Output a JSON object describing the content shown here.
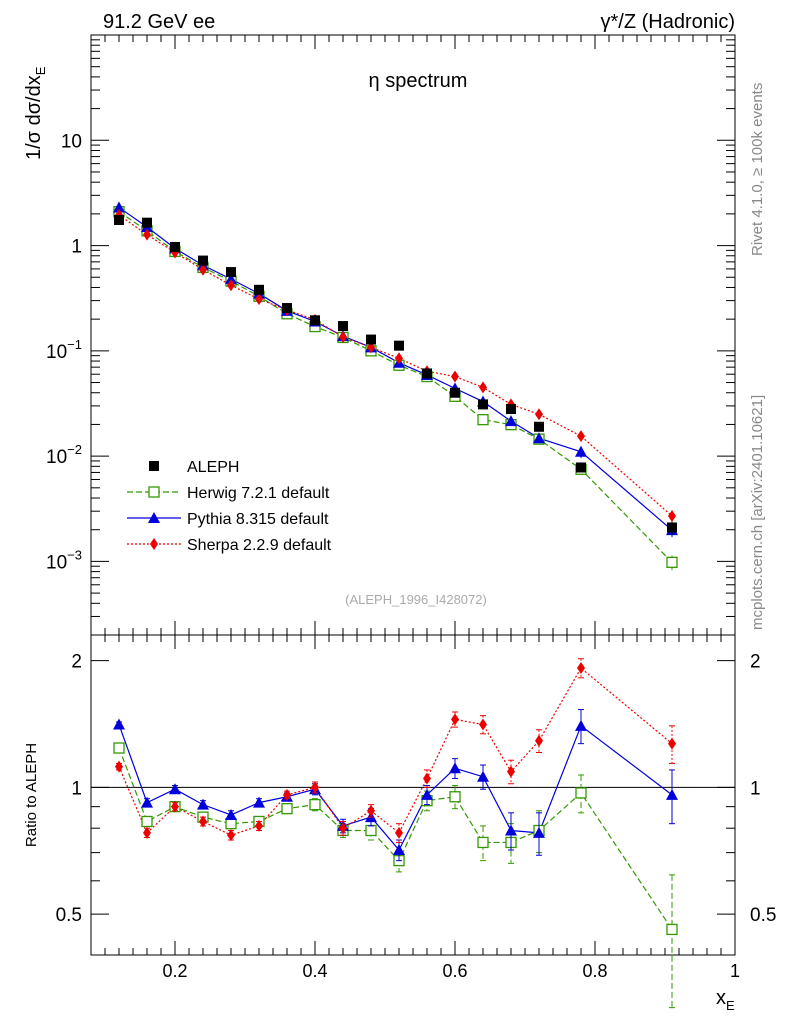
{
  "header": {
    "left_label": "91.2 GeV ee",
    "right_label": "γ*/Z (Hadronic)"
  },
  "side_labels": {
    "rivet": "Rivet 4.1.0, ≥ 100k events",
    "mcplots": "mcplots.cern.ch [arXiv:2401.10621]"
  },
  "chart_data": {
    "type": "scatter",
    "title": "η spectrum",
    "analysis_label": "(ALEPH_1996_I428072)",
    "xlabel": "x",
    "xlabel_sub": "E",
    "ylabel": "1/σ  dσ/dx",
    "ylabel_sub": "E",
    "ratio_ylabel": "Ratio to ALEPH",
    "xlim": [
      0.08,
      1.0
    ],
    "ylim": [
      0.0002,
      100
    ],
    "ratio_ylim": [
      0.4,
      2.3
    ],
    "yscale": "log",
    "x_ticks": [
      0.2,
      0.4,
      0.6,
      0.8,
      1.0
    ],
    "x_tick_labels": [
      "0.2",
      "0.4",
      "0.6",
      "0.8",
      "1"
    ],
    "y_ticks": [
      0.001,
      0.01,
      0.1,
      1,
      10
    ],
    "y_tick_labels": [
      {
        "base": "10",
        "exp": "−3"
      },
      {
        "base": "10",
        "exp": "−2"
      },
      {
        "base": "10",
        "exp": "−1"
      },
      {
        "base": "1",
        "exp": ""
      },
      {
        "base": "10",
        "exp": ""
      }
    ],
    "ratio_ticks": [
      0.5,
      1,
      2
    ],
    "ratio_tick_labels": [
      "0.5",
      "1",
      "2"
    ],
    "x": [
      0.12,
      0.16,
      0.2,
      0.24,
      0.28,
      0.32,
      0.36,
      0.4,
      0.44,
      0.48,
      0.52,
      0.56,
      0.6,
      0.64,
      0.68,
      0.72,
      0.78,
      0.91
    ],
    "data": {
      "name": "ALEPH",
      "color": "#000000",
      "values": [
        1.75,
        1.65,
        0.97,
        0.72,
        0.56,
        0.38,
        0.255,
        0.195,
        0.172,
        0.128,
        0.112,
        0.061,
        0.04,
        0.031,
        0.028,
        0.019,
        0.0078,
        0.0021
      ]
    },
    "series": [
      {
        "name": "Herwig 7.2.1 default",
        "color": "#339900",
        "marker": "open-square",
        "dash": "6,3",
        "values": [
          2.1,
          1.38,
          0.88,
          0.62,
          0.46,
          0.33,
          0.225,
          0.17,
          0.134,
          0.1,
          0.073,
          0.057,
          0.037,
          0.0222,
          0.0199,
          0.0145,
          0.0075,
          0.00098
        ],
        "ratio": [
          1.24,
          0.83,
          0.9,
          0.85,
          0.82,
          0.83,
          0.89,
          0.91,
          0.79,
          0.79,
          0.67,
          0.93,
          0.95,
          0.74,
          0.74,
          0.79,
          0.97,
          0.46
        ],
        "ratio_err": [
          0.03,
          0.02,
          0.02,
          0.02,
          0.02,
          0.02,
          0.02,
          0.03,
          0.03,
          0.04,
          0.04,
          0.05,
          0.06,
          0.07,
          0.08,
          0.09,
          0.1,
          0.16
        ]
      },
      {
        "name": "Pythia 8.315 default",
        "color": "#0000dd",
        "marker": "triangle",
        "dash": "",
        "values": [
          2.3,
          1.5,
          0.94,
          0.65,
          0.48,
          0.35,
          0.24,
          0.19,
          0.138,
          0.108,
          0.077,
          0.059,
          0.044,
          0.033,
          0.0215,
          0.0148,
          0.011,
          0.00198
        ],
        "ratio": [
          1.41,
          0.92,
          0.99,
          0.91,
          0.86,
          0.92,
          0.95,
          0.99,
          0.81,
          0.85,
          0.71,
          0.96,
          1.11,
          1.06,
          0.79,
          0.78,
          1.4,
          0.96
        ],
        "ratio_err": [
          0.02,
          0.02,
          0.02,
          0.02,
          0.02,
          0.02,
          0.02,
          0.03,
          0.03,
          0.04,
          0.04,
          0.05,
          0.06,
          0.07,
          0.08,
          0.09,
          0.13,
          0.14
        ]
      },
      {
        "name": "Sherpa 2.2.9 default",
        "color": "#ee0000",
        "marker": "diamond",
        "dash": "2,2",
        "values": [
          1.95,
          1.27,
          0.86,
          0.59,
          0.42,
          0.31,
          0.245,
          0.197,
          0.135,
          0.108,
          0.085,
          0.064,
          0.057,
          0.045,
          0.031,
          0.025,
          0.0155,
          0.0027
        ],
        "ratio": [
          1.12,
          0.78,
          0.9,
          0.83,
          0.77,
          0.81,
          0.96,
          1.0,
          0.8,
          0.88,
          0.78,
          1.05,
          1.45,
          1.41,
          1.09,
          1.29,
          1.92,
          1.27
        ],
        "ratio_err": [
          0.02,
          0.02,
          0.02,
          0.02,
          0.02,
          0.02,
          0.02,
          0.03,
          0.03,
          0.03,
          0.04,
          0.05,
          0.06,
          0.07,
          0.07,
          0.08,
          0.1,
          0.13
        ]
      }
    ],
    "data_err_frac": [
      0.03,
      0.02,
      0.02,
      0.02,
      0.02,
      0.02,
      0.02,
      0.02,
      0.03,
      0.03,
      0.03,
      0.04,
      0.05,
      0.06,
      0.07,
      0.08,
      0.09,
      0.14
    ]
  }
}
